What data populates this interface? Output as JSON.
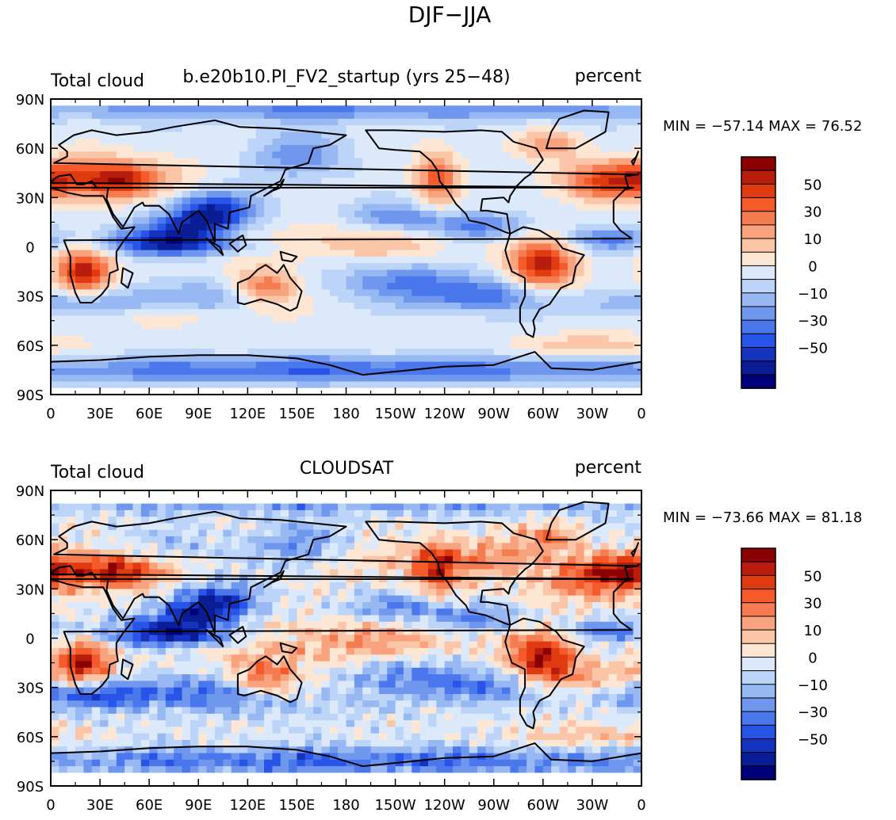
{
  "figure": {
    "title": "DJF−JJA"
  },
  "panels": [
    {
      "left_label": "Total cloud",
      "center_label": "b.e20b10.PI_FV2_startup (yrs 25−48)",
      "right_label": "percent",
      "stats": "MIN = −57.14 MAX =  76.52"
    },
    {
      "left_label": "Total cloud",
      "center_label": "CLOUDSAT",
      "right_label": "percent",
      "stats": "MIN = −73.66 MAX =  81.18"
    }
  ],
  "axes": {
    "lat_labels": [
      "90N",
      "60N",
      "30N",
      "0",
      "30S",
      "60S",
      "90S"
    ],
    "lon_labels": [
      "0",
      "30E",
      "60E",
      "90E",
      "120E",
      "150E",
      "180",
      "150W",
      "120W",
      "90W",
      "60W",
      "30W",
      "0"
    ]
  },
  "colorbar": {
    "tick_labels": [
      "50",
      "30",
      "10",
      "0",
      "−10",
      "−30",
      "−50"
    ],
    "colors": [
      "#8b0000",
      "#b71c0c",
      "#e03a10",
      "#f45a2a",
      "#f47c50",
      "#f9a27e",
      "#fbc5a8",
      "#fde6d4",
      "#dce9fb",
      "#bcd4f8",
      "#97b8f2",
      "#6f97ee",
      "#4a78ec",
      "#2855e8",
      "#1434c0",
      "#0a1d94",
      "#00007a"
    ]
  },
  "chart_data": {
    "type": "heatmap",
    "title": "DJF−JJA",
    "panels": [
      {
        "field": "Total cloud",
        "source": "b.e20b10.PI_FV2_startup (yrs 25−48)",
        "units": "percent",
        "min": -57.14,
        "max": 76.52,
        "lon_range": [
          0,
          360
        ],
        "lat_range": [
          -90,
          90
        ]
      },
      {
        "field": "Total cloud",
        "source": "CLOUDSAT",
        "units": "percent",
        "min": -73.66,
        "max": 81.18,
        "lon_range": [
          0,
          360
        ],
        "lat_range": [
          -90,
          90
        ]
      }
    ],
    "levels": [
      -60,
      -50,
      -40,
      -30,
      -20,
      -10,
      -5,
      0,
      5,
      10,
      20,
      30,
      40,
      50,
      60
    ]
  }
}
